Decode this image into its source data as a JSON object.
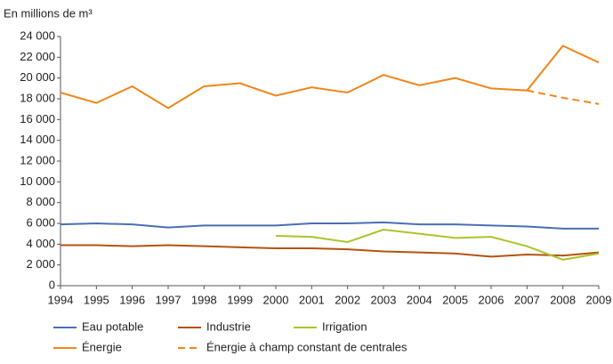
{
  "chart_data": {
    "type": "line",
    "title": "En millions de m³",
    "x": [
      1994,
      1995,
      1996,
      1997,
      1998,
      1999,
      2000,
      2001,
      2002,
      2003,
      2004,
      2005,
      2006,
      2007,
      2008,
      2009
    ],
    "xlim": [
      1994,
      2009
    ],
    "ylim": [
      0,
      24000
    ],
    "yticks": [
      0,
      {
        "value": 2000,
        "label": "2 000"
      },
      {
        "value": 4000,
        "label": "4 000"
      },
      {
        "value": 6000,
        "label": "6 000"
      },
      {
        "value": 8000,
        "label": "8 000"
      },
      {
        "value": 10000,
        "label": "10 000"
      },
      {
        "value": 12000,
        "label": "12 000"
      },
      {
        "value": 14000,
        "label": "14 000"
      },
      {
        "value": 16000,
        "label": "16 000"
      },
      {
        "value": 18000,
        "label": "18 000"
      },
      {
        "value": 20000,
        "label": "20 000"
      },
      {
        "value": 22000,
        "label": "22 000"
      },
      {
        "value": 24000,
        "label": "24 000"
      }
    ],
    "series": [
      {
        "name": "Eau potable",
        "color": "#4a6fb5",
        "values": [
          5900,
          6000,
          5900,
          5600,
          5800,
          5800,
          5800,
          6000,
          6000,
          6100,
          5900,
          5900,
          5800,
          5700,
          5500,
          5500
        ]
      },
      {
        "name": "Industrie",
        "color": "#b5530f",
        "values": [
          3900,
          3900,
          3800,
          3900,
          3800,
          3700,
          3600,
          3600,
          3500,
          3300,
          3200,
          3100,
          2800,
          3000,
          2900,
          3200
        ]
      },
      {
        "name": "Irrigation",
        "color": "#a9c52a",
        "values": [
          null,
          null,
          null,
          null,
          null,
          null,
          4800,
          4700,
          4200,
          5400,
          5000,
          4600,
          4700,
          3800,
          2500,
          3100
        ]
      },
      {
        "name": "Énergie",
        "color": "#f0861a",
        "values": [
          18600,
          17600,
          19200,
          17100,
          19200,
          19500,
          18300,
          19100,
          18600,
          20300,
          19300,
          20000,
          19000,
          18800,
          23100,
          21500
        ]
      },
      {
        "name": "Énergie à champ constant de centrales",
        "color": "#f0861a",
        "dashed": true,
        "values": [
          null,
          null,
          null,
          null,
          null,
          null,
          null,
          null,
          null,
          null,
          null,
          null,
          null,
          18800,
          18100,
          17500
        ]
      }
    ]
  }
}
